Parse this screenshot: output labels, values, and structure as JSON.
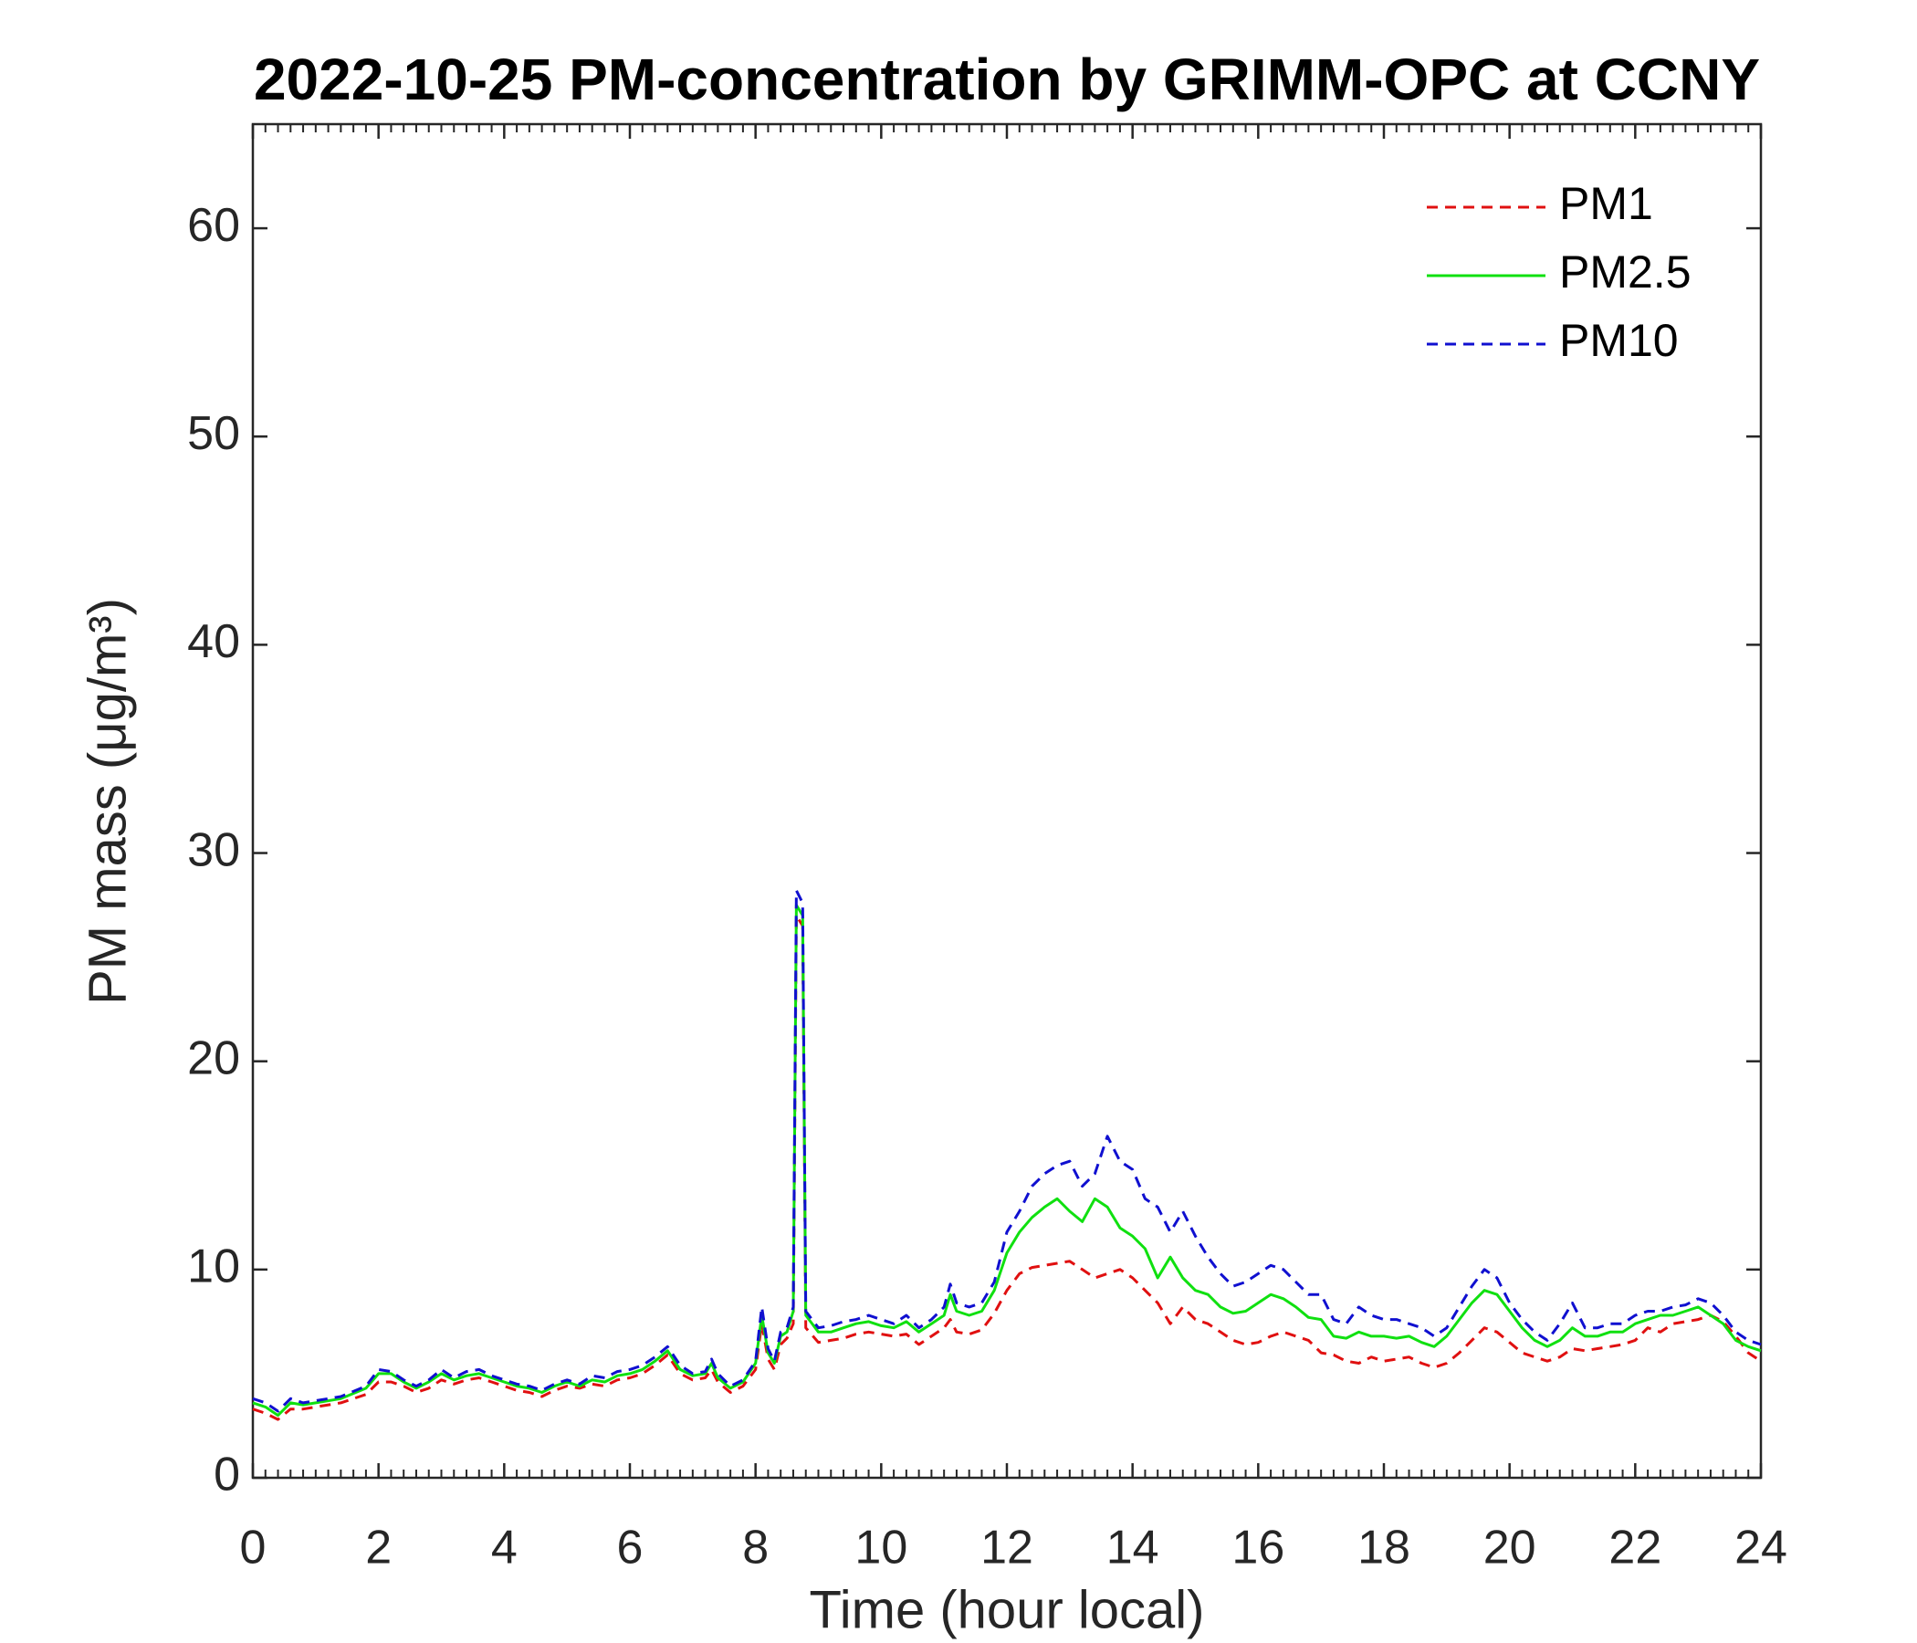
{
  "chart_data": {
    "type": "line",
    "title": "2022-10-25 PM-concentration by GRIMM-OPC at CCNY",
    "xlabel": "Time (hour local)",
    "ylabel": "PM mass (μg/m³)",
    "x": [
      0,
      0.2,
      0.4,
      0.6,
      0.8,
      1.0,
      1.4,
      1.8,
      2.0,
      2.2,
      2.4,
      2.6,
      2.8,
      3.0,
      3.2,
      3.4,
      3.6,
      3.8,
      4.0,
      4.2,
      4.4,
      4.6,
      4.8,
      5.0,
      5.2,
      5.4,
      5.6,
      5.8,
      6.0,
      6.2,
      6.4,
      6.6,
      6.8,
      7.0,
      7.2,
      7.3,
      7.4,
      7.6,
      7.8,
      8.0,
      8.1,
      8.2,
      8.3,
      8.4,
      8.5,
      8.6,
      8.65,
      8.75,
      8.8,
      9.0,
      9.2,
      9.4,
      9.6,
      9.8,
      10.0,
      10.2,
      10.4,
      10.6,
      10.8,
      11.0,
      11.1,
      11.2,
      11.4,
      11.6,
      11.8,
      12.0,
      12.2,
      12.4,
      12.6,
      12.8,
      13.0,
      13.2,
      13.4,
      13.6,
      13.8,
      14.0,
      14.2,
      14.4,
      14.6,
      14.8,
      15.0,
      15.2,
      15.4,
      15.6,
      15.8,
      16.0,
      16.2,
      16.4,
      16.6,
      16.8,
      17.0,
      17.2,
      17.4,
      17.6,
      17.8,
      18.0,
      18.2,
      18.4,
      18.6,
      18.8,
      19.0,
      19.2,
      19.4,
      19.6,
      19.8,
      20.0,
      20.2,
      20.4,
      20.6,
      20.8,
      21.0,
      21.2,
      21.4,
      21.6,
      21.8,
      22.0,
      22.2,
      22.4,
      22.6,
      22.8,
      23.0,
      23.2,
      23.4,
      23.6,
      23.8,
      24.0
    ],
    "series": [
      {
        "name": "PM1",
        "color": "#e01010",
        "linestyle": "dashed",
        "values": [
          3.3,
          3.1,
          2.8,
          3.3,
          3.3,
          3.4,
          3.6,
          4.0,
          4.6,
          4.6,
          4.4,
          4.1,
          4.3,
          4.7,
          4.5,
          4.7,
          4.8,
          4.6,
          4.4,
          4.2,
          4.1,
          3.9,
          4.2,
          4.4,
          4.3,
          4.5,
          4.4,
          4.7,
          4.8,
          5.0,
          5.4,
          5.9,
          5.0,
          4.7,
          4.8,
          5.2,
          4.6,
          4.1,
          4.4,
          5.2,
          7.4,
          5.7,
          5.2,
          6.4,
          6.7,
          7.4,
          27.0,
          26.5,
          7.2,
          6.5,
          6.6,
          6.7,
          6.9,
          7.0,
          6.9,
          6.8,
          6.9,
          6.4,
          6.8,
          7.2,
          7.6,
          7.0,
          6.9,
          7.1,
          7.9,
          9.0,
          9.8,
          10.1,
          10.2,
          10.3,
          10.4,
          10.0,
          9.6,
          9.8,
          10.0,
          9.6,
          9.0,
          8.4,
          7.4,
          8.2,
          7.6,
          7.4,
          7.0,
          6.6,
          6.4,
          6.5,
          6.8,
          7.0,
          6.8,
          6.6,
          6.0,
          5.9,
          5.6,
          5.5,
          5.8,
          5.6,
          5.7,
          5.8,
          5.5,
          5.3,
          5.5,
          6.0,
          6.6,
          7.2,
          7.0,
          6.5,
          6.0,
          5.8,
          5.6,
          5.8,
          6.2,
          6.1,
          6.2,
          6.3,
          6.4,
          6.6,
          7.2,
          7.0,
          7.4,
          7.5,
          7.6,
          7.8,
          7.5,
          6.8,
          6.0,
          5.6
        ]
      },
      {
        "name": "PM2.5",
        "color": "#10e010",
        "linestyle": "solid",
        "values": [
          3.6,
          3.4,
          3.0,
          3.6,
          3.5,
          3.6,
          3.8,
          4.3,
          5.0,
          5.0,
          4.6,
          4.3,
          4.6,
          5.0,
          4.7,
          4.9,
          5.0,
          4.8,
          4.6,
          4.4,
          4.3,
          4.1,
          4.4,
          4.6,
          4.4,
          4.7,
          4.6,
          4.9,
          5.0,
          5.2,
          5.6,
          6.1,
          5.2,
          4.9,
          5.0,
          5.5,
          4.8,
          4.3,
          4.6,
          5.5,
          7.8,
          6.0,
          5.5,
          6.8,
          7.0,
          8.0,
          27.5,
          27.0,
          7.8,
          7.0,
          7.0,
          7.2,
          7.4,
          7.5,
          7.3,
          7.2,
          7.5,
          7.0,
          7.4,
          7.8,
          8.8,
          8.0,
          7.8,
          8.0,
          9.0,
          10.8,
          11.8,
          12.5,
          13.0,
          13.4,
          12.8,
          12.3,
          13.4,
          13.0,
          12.0,
          11.6,
          11.0,
          9.6,
          10.6,
          9.6,
          9.0,
          8.8,
          8.2,
          7.9,
          8.0,
          8.4,
          8.8,
          8.6,
          8.2,
          7.7,
          7.6,
          6.8,
          6.7,
          7.0,
          6.8,
          6.8,
          6.7,
          6.8,
          6.5,
          6.3,
          6.8,
          7.6,
          8.4,
          9.0,
          8.8,
          8.0,
          7.2,
          6.6,
          6.3,
          6.6,
          7.2,
          6.8,
          6.8,
          7.0,
          7.0,
          7.4,
          7.6,
          7.8,
          7.8,
          8.0,
          8.2,
          7.8,
          7.4,
          6.6,
          6.3,
          6.1
        ]
      },
      {
        "name": "PM10",
        "color": "#1010d0",
        "linestyle": "dashed",
        "values": [
          3.8,
          3.6,
          3.2,
          3.8,
          3.6,
          3.7,
          3.9,
          4.4,
          5.2,
          5.1,
          4.7,
          4.4,
          4.7,
          5.2,
          4.8,
          5.1,
          5.2,
          4.9,
          4.7,
          4.5,
          4.4,
          4.2,
          4.5,
          4.7,
          4.5,
          4.9,
          4.8,
          5.1,
          5.2,
          5.4,
          5.8,
          6.3,
          5.4,
          5.0,
          5.1,
          5.7,
          5.0,
          4.4,
          4.7,
          5.6,
          8.2,
          6.2,
          5.6,
          7.0,
          7.2,
          8.2,
          28.2,
          27.6,
          8.0,
          7.2,
          7.3,
          7.5,
          7.6,
          7.8,
          7.6,
          7.4,
          7.8,
          7.2,
          7.6,
          8.2,
          9.3,
          8.4,
          8.2,
          8.4,
          9.4,
          11.8,
          12.8,
          14.0,
          14.6,
          15.0,
          15.2,
          14.0,
          14.6,
          16.4,
          15.2,
          14.8,
          13.4,
          13.0,
          11.8,
          12.8,
          11.6,
          10.6,
          9.8,
          9.2,
          9.4,
          9.8,
          10.2,
          10.0,
          9.4,
          8.8,
          8.8,
          7.6,
          7.4,
          8.2,
          7.8,
          7.6,
          7.6,
          7.4,
          7.2,
          6.8,
          7.2,
          8.2,
          9.2,
          10.0,
          9.6,
          8.4,
          7.6,
          7.0,
          6.6,
          7.4,
          8.4,
          7.2,
          7.2,
          7.4,
          7.4,
          7.8,
          8.0,
          8.0,
          8.2,
          8.3,
          8.6,
          8.4,
          7.8,
          7.0,
          6.6,
          6.4
        ]
      }
    ],
    "xlim": [
      0,
      24
    ],
    "xticks": [
      0,
      2,
      4,
      6,
      8,
      10,
      12,
      14,
      16,
      18,
      20,
      22,
      24
    ],
    "ylim": [
      0,
      65
    ],
    "yticks": [
      0,
      10,
      20,
      30,
      40,
      50,
      60
    ],
    "grid": false,
    "legend": "upper right"
  }
}
